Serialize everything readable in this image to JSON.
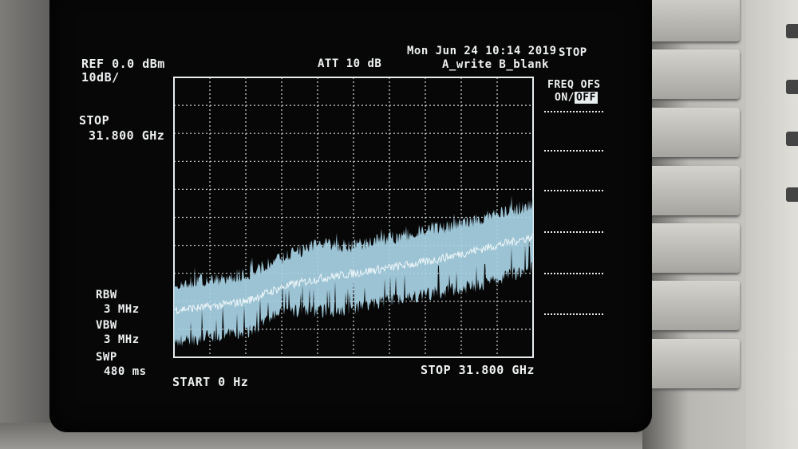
{
  "header": {
    "ref_level": "REF 0.0 dBm",
    "scale": "10dB/",
    "attenuation": "ATT 10 dB",
    "datetime": "Mon Jun 24 10:14 2019",
    "trace_modes": "A_write B_blank"
  },
  "active_function": {
    "label": "STOP",
    "value": "31.800 GHz"
  },
  "settings": {
    "rbw_label": "RBW",
    "rbw_value": "3 MHz",
    "vbw_label": "VBW",
    "vbw_value": "3 MHz",
    "swp_label": "SWP",
    "swp_value": "480 ms"
  },
  "footer": {
    "start": "START 0 Hz",
    "stop": "STOP 31.800 GHz"
  },
  "softkeys": {
    "title": "STOP",
    "freq_ofs_label": "FREQ OFS",
    "freq_ofs_on": "ON/",
    "freq_ofs_off": "OFF"
  },
  "colors": {
    "trace": "#a9d4e6",
    "text": "#eef1f2",
    "screen": "#070707"
  },
  "chart_data": {
    "type": "area",
    "xlabel": "",
    "ylabel": "",
    "x_unit": "GHz",
    "y_unit": "dBm",
    "xlim": [
      0,
      31.8
    ],
    "ylim": [
      -100,
      0
    ],
    "grid": true,
    "divisions": {
      "x": 10,
      "y": 10
    },
    "x": [
      0,
      3.18,
      6.36,
      9.54,
      12.72,
      15.9,
      19.08,
      22.26,
      25.44,
      28.62,
      31.8
    ],
    "series": [
      {
        "role": "max",
        "values": [
          -71,
          -70,
          -68,
          -62,
          -57,
          -58,
          -55,
          -52,
          -50,
          -46,
          -43
        ]
      },
      {
        "role": "mean",
        "values": [
          -83,
          -82,
          -80,
          -75,
          -72,
          -70,
          -68,
          -66,
          -63,
          -60,
          -57
        ]
      },
      {
        "role": "min",
        "values": [
          -97,
          -95,
          -94,
          -86,
          -86,
          -85,
          -82,
          -80,
          -78,
          -75,
          -70
        ]
      }
    ]
  }
}
